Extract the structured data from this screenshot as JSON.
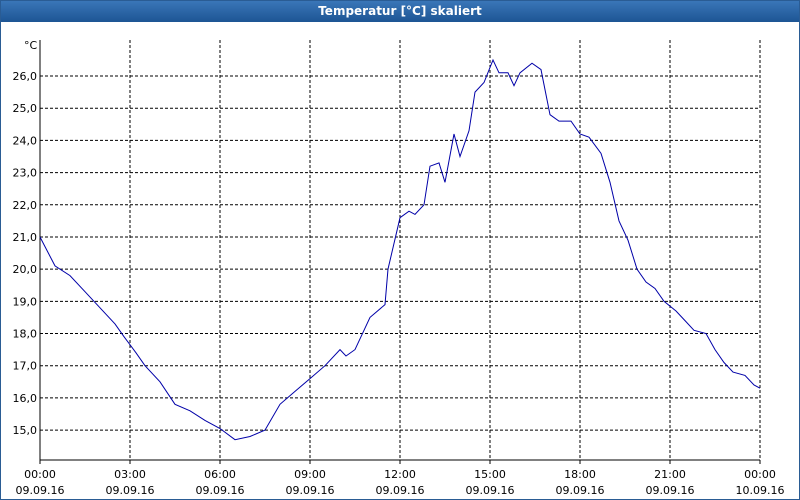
{
  "title": "Temperatur [°C] skaliert",
  "chart_data": {
    "type": "line",
    "y_unit": "°C",
    "color": "#0000a8",
    "grid": true,
    "xlim": [
      0,
      24
    ],
    "ylim": [
      14.07,
      27.12
    ],
    "xticks": [
      {
        "value": 0,
        "label": "00:00",
        "date": "09.09.16"
      },
      {
        "value": 3,
        "label": "03:00",
        "date": "09.09.16"
      },
      {
        "value": 6,
        "label": "06:00",
        "date": "09.09.16"
      },
      {
        "value": 9,
        "label": "09:00",
        "date": "09.09.16"
      },
      {
        "value": 12,
        "label": "12:00",
        "date": "09.09.16"
      },
      {
        "value": 15,
        "label": "15:00",
        "date": "09.09.16"
      },
      {
        "value": 18,
        "label": "18:00",
        "date": "09.09.16"
      },
      {
        "value": 21,
        "label": "21:00",
        "date": "09.09.16"
      },
      {
        "value": 24,
        "label": "00:00",
        "date": "10.09.16"
      }
    ],
    "yticks": [
      {
        "value": 15,
        "label": "15,0"
      },
      {
        "value": 16,
        "label": "16,0"
      },
      {
        "value": 17,
        "label": "17,0"
      },
      {
        "value": 18,
        "label": "18,0"
      },
      {
        "value": 19,
        "label": "19,0"
      },
      {
        "value": 20,
        "label": "20,0"
      },
      {
        "value": 21,
        "label": "21,0"
      },
      {
        "value": 22,
        "label": "22,0"
      },
      {
        "value": 23,
        "label": "23,0"
      },
      {
        "value": 24,
        "label": "24,0"
      },
      {
        "value": 25,
        "label": "25,0"
      },
      {
        "value": 26,
        "label": "26,0"
      }
    ],
    "x": [
      0,
      0.5,
      1,
      1.5,
      2,
      2.5,
      2.8,
      3.2,
      3.5,
      4,
      4.5,
      5,
      5.5,
      6,
      6.5,
      7,
      7.5,
      8,
      8.5,
      9,
      9.5,
      10,
      10.2,
      10.5,
      11,
      11.5,
      11.6,
      12,
      12.3,
      12.5,
      12.8,
      13,
      13.3,
      13.5,
      13.8,
      14,
      14.3,
      14.5,
      14.8,
      15.1,
      15.3,
      15.6,
      15.8,
      16,
      16.4,
      16.7,
      17,
      17.3,
      17.7,
      18,
      18.3,
      18.7,
      19,
      19.3,
      19.6,
      19.9,
      20.2,
      20.5,
      20.8,
      21.2,
      21.5,
      21.8,
      22.2,
      22.5,
      22.8,
      23.1,
      23.5,
      23.8,
      24
    ],
    "values": [
      21.0,
      20.1,
      19.8,
      19.3,
      18.8,
      18.3,
      17.9,
      17.4,
      17.0,
      16.5,
      15.8,
      15.6,
      15.3,
      15.05,
      14.7,
      14.8,
      15.0,
      15.8,
      16.2,
      16.6,
      17.0,
      17.5,
      17.3,
      17.5,
      18.5,
      18.9,
      20.0,
      21.6,
      21.8,
      21.7,
      22.0,
      23.2,
      23.3,
      22.7,
      24.2,
      23.5,
      24.3,
      25.5,
      25.8,
      26.5,
      26.1,
      26.1,
      25.7,
      26.1,
      26.4,
      26.2,
      24.8,
      24.6,
      24.6,
      24.2,
      24.1,
      23.6,
      22.7,
      21.5,
      20.9,
      20.0,
      19.6,
      19.4,
      19.0,
      18.7,
      18.4,
      18.1,
      18.0,
      17.5,
      17.1,
      16.8,
      16.7,
      16.4,
      16.3
    ]
  }
}
